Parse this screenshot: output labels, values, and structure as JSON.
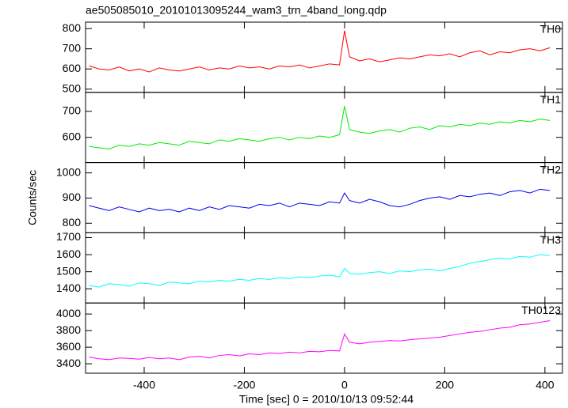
{
  "chart_data": [
    {
      "type": "line",
      "title": "ae505085010_20101013095244_wam3_trn_4band_long.qdp",
      "x": [
        -510,
        -490,
        -470,
        -450,
        -430,
        -410,
        -390,
        -370,
        -350,
        -330,
        -310,
        -290,
        -270,
        -250,
        -230,
        -210,
        -190,
        -170,
        -150,
        -130,
        -110,
        -90,
        -70,
        -50,
        -30,
        -10,
        0,
        10,
        30,
        50,
        70,
        90,
        110,
        130,
        150,
        170,
        190,
        210,
        230,
        250,
        270,
        290,
        310,
        330,
        350,
        370,
        390,
        410
      ],
      "xlim": [
        -517,
        435
      ],
      "ylim": [
        484,
        832
      ],
      "yticks": [
        500,
        600,
        700,
        800
      ],
      "series": [
        {
          "name": "TH0",
          "color": "#ff0000",
          "values": [
            615,
            600,
            595,
            610,
            590,
            600,
            585,
            605,
            595,
            590,
            600,
            610,
            595,
            605,
            600,
            615,
            605,
            610,
            600,
            615,
            610,
            620,
            605,
            615,
            625,
            620,
            790,
            660,
            640,
            650,
            635,
            645,
            655,
            650,
            660,
            670,
            665,
            675,
            660,
            680,
            690,
            670,
            685,
            680,
            695,
            700,
            690,
            705
          ]
        }
      ]
    },
    {
      "type": "line",
      "x": [
        -510,
        -490,
        -470,
        -450,
        -430,
        -410,
        -390,
        -370,
        -350,
        -330,
        -310,
        -290,
        -270,
        -250,
        -230,
        -210,
        -190,
        -170,
        -150,
        -130,
        -110,
        -90,
        -70,
        -50,
        -30,
        -10,
        0,
        10,
        30,
        50,
        70,
        90,
        110,
        130,
        150,
        170,
        190,
        210,
        230,
        250,
        270,
        290,
        310,
        330,
        350,
        370,
        390,
        410
      ],
      "xlim": [
        -517,
        435
      ],
      "ylim": [
        503,
        773
      ],
      "yticks": [
        600,
        700
      ],
      "series": [
        {
          "name": "TH1",
          "color": "#00ee00",
          "values": [
            565,
            560,
            555,
            570,
            565,
            575,
            570,
            580,
            575,
            570,
            585,
            580,
            575,
            590,
            585,
            595,
            590,
            585,
            595,
            600,
            590,
            600,
            595,
            605,
            600,
            610,
            720,
            630,
            620,
            615,
            625,
            630,
            620,
            635,
            640,
            630,
            645,
            640,
            650,
            645,
            655,
            650,
            660,
            655,
            665,
            660,
            670,
            665
          ]
        }
      ]
    },
    {
      "type": "line",
      "ylabel": "Counts/sec",
      "x": [
        -510,
        -490,
        -470,
        -450,
        -430,
        -410,
        -390,
        -370,
        -350,
        -330,
        -310,
        -290,
        -270,
        -250,
        -230,
        -210,
        -190,
        -170,
        -150,
        -130,
        -110,
        -90,
        -70,
        -50,
        -30,
        -10,
        0,
        10,
        30,
        50,
        70,
        90,
        110,
        130,
        150,
        170,
        190,
        210,
        230,
        250,
        270,
        290,
        310,
        330,
        350,
        370,
        390,
        410
      ],
      "xlim": [
        -517,
        435
      ],
      "ylim": [
        762,
        1041
      ],
      "yticks": [
        800,
        900,
        1000
      ],
      "series": [
        {
          "name": "TH2",
          "color": "#0000ee",
          "values": [
            870,
            860,
            850,
            865,
            855,
            845,
            860,
            850,
            855,
            845,
            860,
            850,
            865,
            855,
            870,
            865,
            860,
            875,
            870,
            880,
            865,
            880,
            875,
            870,
            885,
            880,
            920,
            890,
            880,
            895,
            885,
            870,
            865,
            875,
            890,
            900,
            905,
            895,
            910,
            905,
            915,
            920,
            910,
            925,
            930,
            920,
            935,
            930
          ]
        }
      ]
    },
    {
      "type": "line",
      "x": [
        -510,
        -490,
        -470,
        -450,
        -430,
        -410,
        -390,
        -370,
        -350,
        -330,
        -310,
        -290,
        -270,
        -250,
        -230,
        -210,
        -190,
        -170,
        -150,
        -130,
        -110,
        -90,
        -70,
        -50,
        -30,
        -10,
        0,
        10,
        30,
        50,
        70,
        90,
        110,
        130,
        150,
        170,
        190,
        210,
        230,
        250,
        270,
        290,
        310,
        330,
        350,
        370,
        390,
        410
      ],
      "xlim": [
        -517,
        435
      ],
      "ylim": [
        1317,
        1728
      ],
      "yticks": [
        1400,
        1500,
        1600,
        1700
      ],
      "series": [
        {
          "name": "TH3",
          "color": "#00ffff",
          "values": [
            1420,
            1410,
            1430,
            1425,
            1415,
            1435,
            1430,
            1420,
            1440,
            1435,
            1430,
            1445,
            1440,
            1450,
            1445,
            1455,
            1450,
            1460,
            1455,
            1465,
            1460,
            1470,
            1465,
            1475,
            1480,
            1470,
            1520,
            1490,
            1485,
            1495,
            1500,
            1490,
            1505,
            1500,
            1510,
            1515,
            1505,
            1520,
            1530,
            1550,
            1560,
            1570,
            1580,
            1575,
            1590,
            1585,
            1600,
            1595
          ]
        }
      ]
    },
    {
      "type": "line",
      "xlabel": "Time [sec] 0 = 2010/10/13 09:52:44",
      "x": [
        -510,
        -490,
        -470,
        -450,
        -430,
        -410,
        -390,
        -370,
        -350,
        -330,
        -310,
        -290,
        -270,
        -250,
        -230,
        -210,
        -190,
        -170,
        -150,
        -130,
        -110,
        -90,
        -70,
        -50,
        -30,
        -10,
        0,
        10,
        30,
        50,
        70,
        90,
        110,
        130,
        150,
        170,
        190,
        210,
        230,
        250,
        270,
        290,
        310,
        330,
        350,
        370,
        390,
        410
      ],
      "xlim": [
        -517,
        435
      ],
      "xticks": [
        -400,
        -200,
        0,
        200,
        400
      ],
      "ylim": [
        3286,
        4133
      ],
      "yticks": [
        3400,
        3600,
        3800,
        4000
      ],
      "series": [
        {
          "name": "TH0123",
          "color": "#ff00ff",
          "values": [
            3480,
            3460,
            3450,
            3470,
            3465,
            3455,
            3475,
            3460,
            3470,
            3450,
            3480,
            3490,
            3470,
            3500,
            3510,
            3495,
            3520,
            3510,
            3530,
            3525,
            3540,
            3530,
            3550,
            3545,
            3560,
            3555,
            3760,
            3660,
            3640,
            3660,
            3670,
            3680,
            3675,
            3690,
            3700,
            3710,
            3720,
            3740,
            3760,
            3780,
            3790,
            3810,
            3830,
            3840,
            3870,
            3880,
            3900,
            3920
          ]
        }
      ]
    }
  ]
}
